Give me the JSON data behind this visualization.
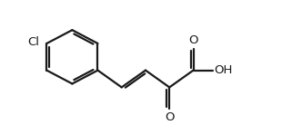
{
  "bg_color": "#ffffff",
  "line_color": "#1a1a1a",
  "line_width": 1.6,
  "figsize": [
    3.1,
    1.38
  ],
  "dpi": 100,
  "xlim": [
    0,
    10
  ],
  "ylim": [
    0,
    4.6
  ]
}
